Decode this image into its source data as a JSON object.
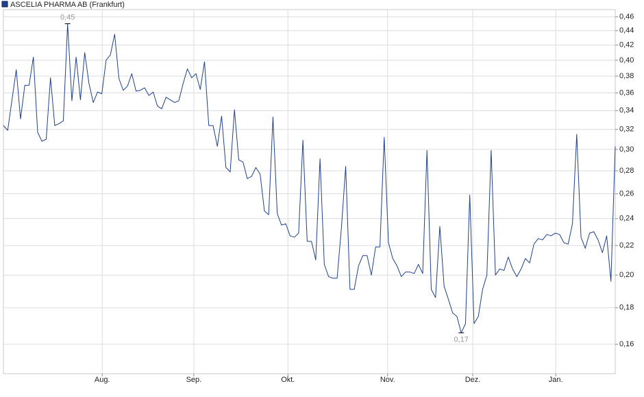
{
  "chart_data": {
    "type": "line",
    "title": "ASCELIA PHARMA AB (Frankfurt)",
    "log_scale": true,
    "grid": true,
    "series": [
      {
        "name": "ASCELIA PHARMA AB (Frankfurt)",
        "color": "#1f3f8f",
        "values": [
          0.324,
          0.319,
          0.352,
          0.388,
          0.331,
          0.369,
          0.369,
          0.404,
          0.317,
          0.308,
          0.31,
          0.378,
          0.324,
          0.326,
          0.329,
          0.45,
          0.351,
          0.404,
          0.352,
          0.41,
          0.371,
          0.349,
          0.361,
          0.359,
          0.4,
          0.407,
          0.435,
          0.377,
          0.363,
          0.368,
          0.383,
          0.362,
          0.363,
          0.366,
          0.357,
          0.361,
          0.345,
          0.342,
          0.355,
          0.352,
          0.349,
          0.351,
          0.371,
          0.389,
          0.378,
          0.383,
          0.364,
          0.398,
          0.324,
          0.324,
          0.303,
          0.334,
          0.283,
          0.279,
          0.341,
          0.29,
          0.288,
          0.273,
          0.275,
          0.283,
          0.277,
          0.246,
          0.243,
          0.333,
          0.244,
          0.235,
          0.236,
          0.227,
          0.226,
          0.229,
          0.309,
          0.223,
          0.223,
          0.21,
          0.291,
          0.207,
          0.199,
          0.198,
          0.198,
          0.233,
          0.284,
          0.191,
          0.191,
          0.206,
          0.213,
          0.213,
          0.2,
          0.219,
          0.219,
          0.312,
          0.222,
          0.211,
          0.206,
          0.199,
          0.202,
          0.202,
          0.201,
          0.207,
          0.201,
          0.299,
          0.191,
          0.186,
          0.234,
          0.193,
          0.185,
          0.177,
          0.175,
          0.166,
          0.171,
          0.259,
          0.171,
          0.175,
          0.191,
          0.2,
          0.299,
          0.2,
          0.204,
          0.203,
          0.212,
          0.204,
          0.199,
          0.204,
          0.211,
          0.208,
          0.221,
          0.225,
          0.224,
          0.228,
          0.227,
          0.229,
          0.228,
          0.222,
          0.221,
          0.236,
          0.315,
          0.226,
          0.218,
          0.229,
          0.23,
          0.224,
          0.215,
          0.227,
          0.196,
          0.303
        ]
      }
    ],
    "annotations": [
      {
        "index": 15,
        "label": "0,45",
        "position": "above"
      },
      {
        "index": 107,
        "label": "0,17",
        "position": "below"
      }
    ],
    "xlim": [
      0,
      143
    ],
    "xticks": [
      {
        "value": 23.1,
        "label": "Aug."
      },
      {
        "value": 44.5,
        "label": "Sep."
      },
      {
        "value": 66.5,
        "label": "Okt."
      },
      {
        "value": 89.8,
        "label": "Nov."
      },
      {
        "value": 109.7,
        "label": "Dez."
      },
      {
        "value": 129.1,
        "label": "Jan."
      }
    ],
    "ylim": [
      0.1455,
      0.471
    ],
    "yticks": [
      {
        "value": 0.16,
        "label": "0,16"
      },
      {
        "value": 0.18,
        "label": "0,18"
      },
      {
        "value": 0.2,
        "label": "0,20"
      },
      {
        "value": 0.22,
        "label": "0,22"
      },
      {
        "value": 0.24,
        "label": "0,24"
      },
      {
        "value": 0.26,
        "label": "0,26"
      },
      {
        "value": 0.28,
        "label": "0,28"
      },
      {
        "value": 0.3,
        "label": "0,30"
      },
      {
        "value": 0.32,
        "label": "0,32"
      },
      {
        "value": 0.34,
        "label": "0,34"
      },
      {
        "value": 0.36,
        "label": "0,36"
      },
      {
        "value": 0.38,
        "label": "0,38"
      },
      {
        "value": 0.4,
        "label": "0,40"
      },
      {
        "value": 0.42,
        "label": "0,42"
      },
      {
        "value": 0.44,
        "label": "0,44"
      },
      {
        "value": 0.46,
        "label": "0,46"
      }
    ]
  }
}
